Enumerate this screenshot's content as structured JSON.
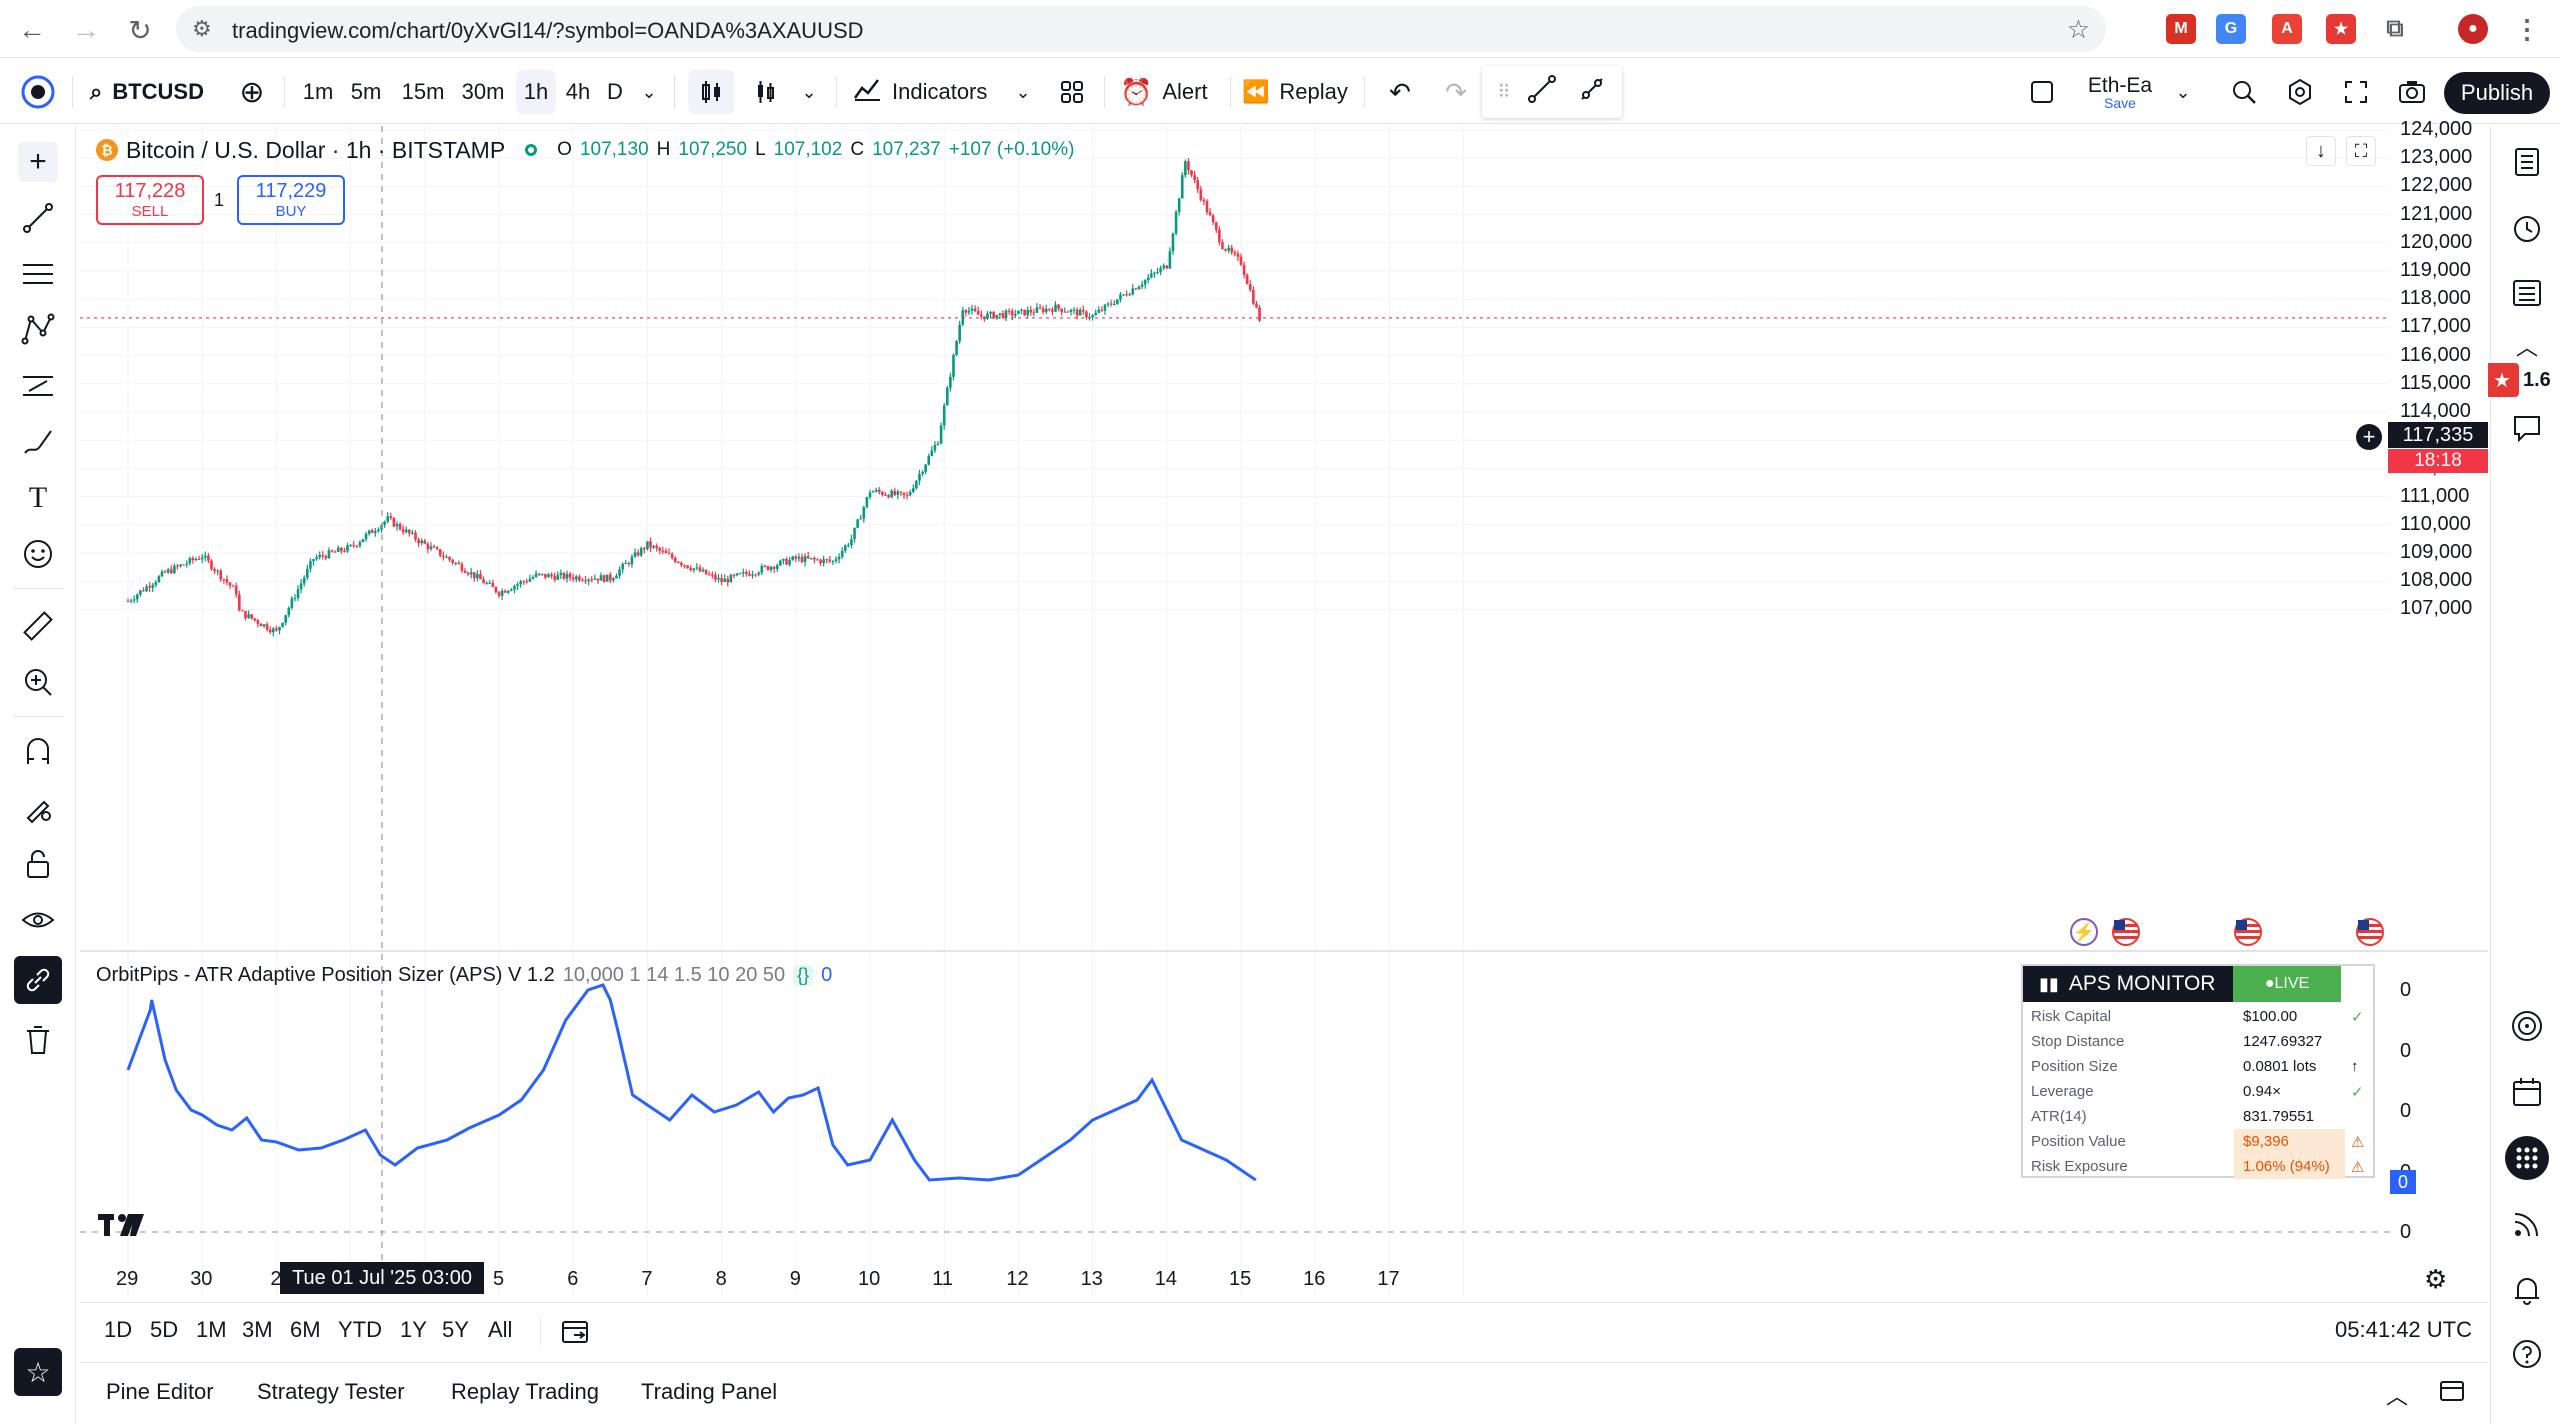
{
  "browser": {
    "url": "tradingview.com/chart/0yXvGl14/?symbol=OANDA%3AXAUUSD"
  },
  "toolbar": {
    "symbol": "BTCUSD",
    "timeframes": [
      "1m",
      "5m",
      "15m",
      "30m",
      "1h",
      "4h",
      "D"
    ],
    "indicators_label": "Indicators",
    "alert_label": "Alert",
    "replay_label": "Replay",
    "layout_name": "Eth-Ea",
    "layout_save": "Save",
    "publish_label": "Publish"
  },
  "legend": {
    "title": "Bitcoin / U.S. Dollar · 1h · BITSTAMP",
    "o_label": "O",
    "o_value": "107,130",
    "h_label": "H",
    "h_value": "107,250",
    "l_label": "L",
    "l_value": "107,102",
    "c_label": "C",
    "c_value": "107,237",
    "change": "+107 (+0.10%)"
  },
  "trade": {
    "sell_price": "117,228",
    "sell_label": "SELL",
    "qty": "1",
    "buy_price": "117,229",
    "buy_label": "BUY"
  },
  "price_axis": {
    "ticks": [
      "124,000",
      "123,000",
      "122,000",
      "121,000",
      "120,000",
      "119,000",
      "118,000",
      "117,000",
      "116,000",
      "115,000",
      "114,000",
      "113,000",
      "112,000",
      "111,000",
      "110,000",
      "109,000",
      "108,000",
      "107,000"
    ],
    "last_price": "117,335",
    "countdown": "18:18"
  },
  "indicator": {
    "name": "OrbitPips - ATR Adaptive Position Sizer (APS) V 1.2",
    "params": "10,000 1 14 1.5 10 20 50",
    "braces": "{}",
    "value": "0",
    "axis_ticks": [
      "0",
      "0",
      "0",
      "0",
      "0"
    ],
    "current_badge": "0",
    "color": "#2962ff"
  },
  "aps_monitor": {
    "title": "APS MONITOR",
    "status": "●LIVE",
    "rows": [
      {
        "label": "Risk Capital",
        "value": "$100.00",
        "mark": "✓"
      },
      {
        "label": "Stop Distance",
        "value": "1247.69327",
        "mark": ""
      },
      {
        "label": "Position Size",
        "value": "0.0801 lots",
        "mark": "↑"
      },
      {
        "label": "Leverage",
        "value": "0.94×",
        "mark": "✓"
      },
      {
        "label": "ATR(14)",
        "value": "831.79551",
        "mark": ""
      },
      {
        "label": "Position Value",
        "value": "$9,396",
        "mark": "⚠"
      },
      {
        "label": "Risk Exposure",
        "value": "1.06% (94%)",
        "mark": "⚠"
      }
    ]
  },
  "time_axis": {
    "ticks": [
      "29",
      "30",
      "2",
      "3",
      "4",
      "5",
      "6",
      "7",
      "8",
      "9",
      "10",
      "11",
      "12",
      "13",
      "14",
      "15",
      "16",
      "17"
    ],
    "cursor_label": "Tue 01 Jul '25   03:00"
  },
  "range_bar": {
    "ranges": [
      "1D",
      "5D",
      "1M",
      "3M",
      "6M",
      "YTD",
      "1Y",
      "5Y",
      "All"
    ],
    "clock": "05:41:42 UTC"
  },
  "bottom_panel": {
    "tabs": [
      "Pine Editor",
      "Strategy Tester",
      "Replay Trading",
      "Trading Panel"
    ]
  },
  "right_sidebar": {
    "badge": "1.6"
  },
  "colors": {
    "up": "#089981",
    "down": "#f23645",
    "accent": "#2962ff"
  },
  "chart_data": {
    "type": "candlestick",
    "x_range": [
      "2025-06-29",
      "2025-07-17"
    ],
    "y_range": [
      106500,
      124200
    ],
    "anchors": [
      {
        "date": "06-29 00:00",
        "price": 107300
      },
      {
        "date": "06-29 12:00",
        "price": 108300
      },
      {
        "date": "06-30 00:00",
        "price": 108900
      },
      {
        "date": "06-30 12:00",
        "price": 107500
      },
      {
        "date": "07-01 06:00",
        "price": 107300
      },
      {
        "date": "07-01 14:00",
        "price": 106800
      },
      {
        "date": "07-02 00:00",
        "price": 106200
      },
      {
        "date": "07-02 12:00",
        "price": 108800
      },
      {
        "date": "07-03 00:00",
        "price": 109200
      },
      {
        "date": "07-03 12:00",
        "price": 110200
      },
      {
        "date": "07-04 00:00",
        "price": 109300
      },
      {
        "date": "07-04 12:00",
        "price": 108500
      },
      {
        "date": "07-05 00:00",
        "price": 107600
      },
      {
        "date": "07-05 12:00",
        "price": 108200
      },
      {
        "date": "07-06 12:00",
        "price": 108100
      },
      {
        "date": "07-07 00:00",
        "price": 109300
      },
      {
        "date": "07-07 12:00",
        "price": 108600
      },
      {
        "date": "07-08 00:00",
        "price": 108000
      },
      {
        "date": "07-08 12:00",
        "price": 108400
      },
      {
        "date": "07-09 00:00",
        "price": 108800
      },
      {
        "date": "07-09 12:00",
        "price": 108700
      },
      {
        "date": "07-09 18:00",
        "price": 109500
      },
      {
        "date": "07-10 00:00",
        "price": 111200
      },
      {
        "date": "07-10 12:00",
        "price": 111000
      },
      {
        "date": "07-10 22:00",
        "price": 113000
      },
      {
        "date": "07-11 06:00",
        "price": 117700
      },
      {
        "date": "07-11 12:00",
        "price": 117400
      },
      {
        "date": "07-12 00:00",
        "price": 117500
      },
      {
        "date": "07-12 12:00",
        "price": 117700
      },
      {
        "date": "07-13 00:00",
        "price": 117400
      },
      {
        "date": "07-13 12:00",
        "price": 118300
      },
      {
        "date": "07-14 00:00",
        "price": 119200
      },
      {
        "date": "07-14 06:00",
        "price": 122900
      },
      {
        "date": "07-14 12:00",
        "price": 121400
      },
      {
        "date": "07-14 18:00",
        "price": 119900
      },
      {
        "date": "07-15 00:00",
        "price": 119300
      },
      {
        "date": "07-15 06:00",
        "price": 117300
      }
    ]
  }
}
